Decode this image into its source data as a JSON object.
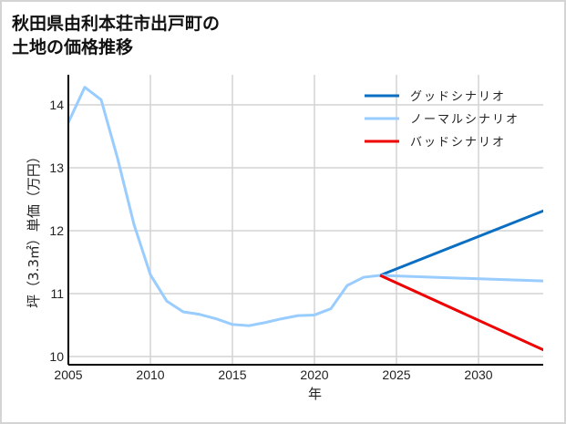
{
  "title": "秋田県由利本荘市出戸町の\n土地の価格推移",
  "chart_data": {
    "type": "line",
    "title": "秋田県由利本荘市出戸町の土地の価格推移",
    "xlabel": "年",
    "ylabel": "坪（3.3㎡）単価（万円）",
    "xlim": [
      2005,
      2034
    ],
    "ylim": [
      9.95,
      14.5
    ],
    "xticks": [
      2005,
      2010,
      2015,
      2020,
      2025,
      2030
    ],
    "yticks": [
      10,
      11,
      12,
      13,
      14
    ],
    "grid": true,
    "legend_position": "upper right",
    "series": [
      {
        "name": "グッドシナリオ",
        "color": "#0a6fc2",
        "x": [
          2024,
          2034
        ],
        "values": [
          11.29,
          12.32
        ]
      },
      {
        "name": "ノーマルシナリオ",
        "color": "#99ccff",
        "x": [
          2005,
          2006,
          2007,
          2008,
          2009,
          2010,
          2011,
          2012,
          2013,
          2014,
          2015,
          2016,
          2017,
          2018,
          2019,
          2020,
          2021,
          2022,
          2023,
          2024,
          2025,
          2034
        ],
        "values": [
          13.72,
          14.28,
          14.08,
          13.15,
          12.1,
          11.3,
          10.88,
          10.71,
          10.67,
          10.6,
          10.51,
          10.49,
          10.54,
          10.6,
          10.65,
          10.66,
          10.76,
          11.13,
          11.26,
          11.29,
          11.28,
          11.2
        ]
      },
      {
        "name": "バッドシナリオ",
        "color": "#ee0000",
        "x": [
          2024,
          2034
        ],
        "values": [
          11.29,
          10.1
        ]
      }
    ]
  },
  "legend": [
    {
      "label": "グッドシナリオ",
      "color": "#0a6fc2"
    },
    {
      "label": "ノーマルシナリオ",
      "color": "#99ccff"
    },
    {
      "label": "バッドシナリオ",
      "color": "#ee0000"
    }
  ]
}
